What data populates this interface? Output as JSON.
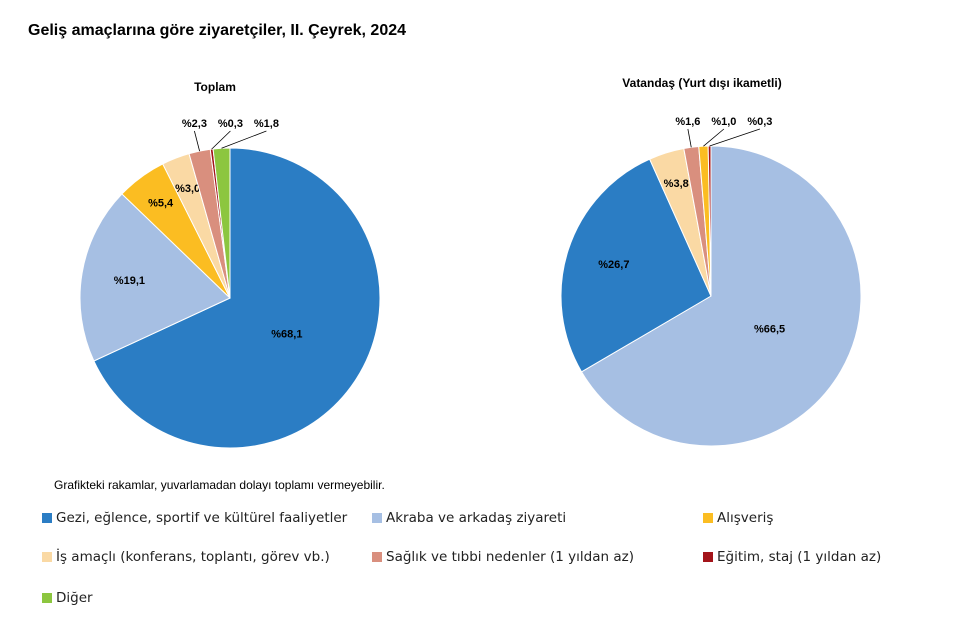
{
  "title": "Geliş amaçlarına göre ziyaretçiler, II. Çeyrek, 2024",
  "note": "Grafikteki rakamlar, yuvarlamadan dolayı toplamı vermeyebilir.",
  "chart_data": [
    {
      "type": "pie",
      "title": "Toplam",
      "categories": [
        "Gezi, eğlence, sportif ve kültürel faaliyetler",
        "Akraba ve arkadaş ziyareti",
        "Alışveriş",
        "İş amaçlı (konferans, toplantı, görev vb.)",
        "Sağlık ve tıbbi nedenler (1 yıldan az)",
        "Eğitim, staj (1 yıldan az)",
        "Diğer"
      ],
      "values": [
        68.1,
        19.1,
        5.4,
        3.0,
        2.3,
        0.3,
        1.8
      ],
      "value_labels": [
        "%68,1",
        "%19,1",
        "%5,4",
        "%3,0",
        "%2,3",
        "%0,3",
        "%1,8"
      ],
      "colors": [
        "#2b7dc4",
        "#a6bfe3",
        "#fbbd22",
        "#fad9a4",
        "#d98f7e",
        "#a3141a",
        "#8cc63f"
      ]
    },
    {
      "type": "pie",
      "title": "Vatandaş (Yurt dışı ikametli)",
      "categories": [
        "Akraba ve arkadaş ziyareti",
        "Gezi, eğlence, sportif ve kültürel faaliyetler",
        "İş amaçlı (konferans, toplantı, görev vb.)",
        "Sağlık ve tıbbi nedenler (1 yıldan az)",
        "Alışveriş",
        "Eğitim, staj (1 yıldan az)"
      ],
      "values": [
        66.5,
        26.7,
        3.8,
        1.6,
        1.0,
        0.3
      ],
      "value_labels": [
        "%66,5",
        "%26,7",
        "%3,8",
        "%1,6",
        "%1,0",
        "%0,3"
      ],
      "colors": [
        "#a6bfe3",
        "#2b7dc4",
        "#fad9a4",
        "#d98f7e",
        "#fbbd22",
        "#a3141a"
      ]
    }
  ]
}
